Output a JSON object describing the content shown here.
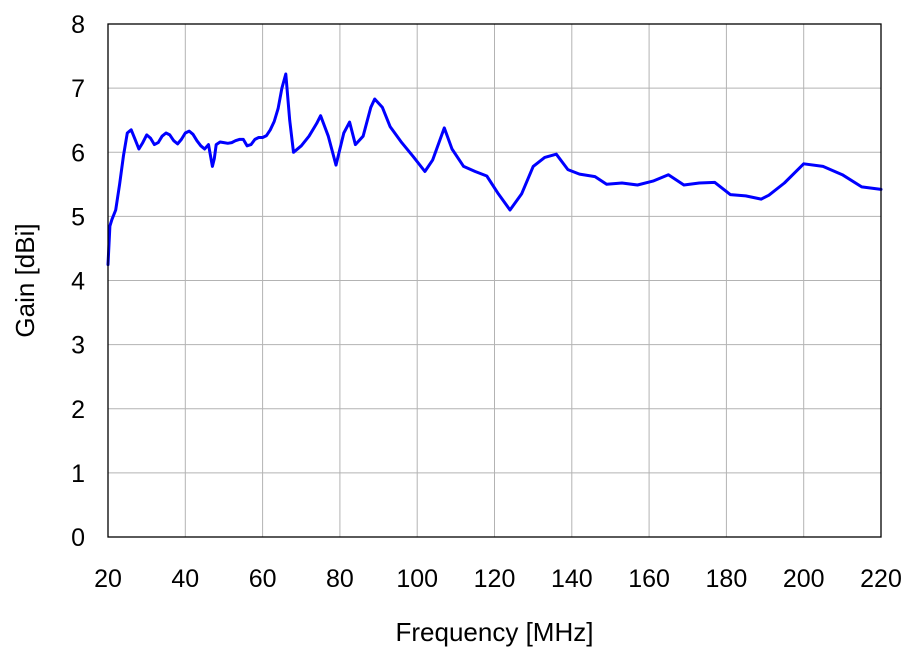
{
  "chart_data": {
    "type": "line",
    "title": "",
    "xlabel": "Frequency [MHz]",
    "ylabel": "Gain [dBi]",
    "xlim": [
      20,
      220
    ],
    "ylim": [
      0,
      8
    ],
    "x_ticks": [
      20,
      40,
      60,
      80,
      100,
      120,
      140,
      160,
      180,
      200,
      220
    ],
    "y_ticks": [
      0,
      1,
      2,
      3,
      4,
      5,
      6,
      7,
      8
    ],
    "x_tick_labels": [
      "20",
      "40",
      "60",
      "80",
      "100",
      "120",
      "140",
      "160",
      "180",
      "200",
      "220"
    ],
    "y_tick_labels": [
      "0",
      "1",
      "2",
      "3",
      "4",
      "5",
      "6",
      "7",
      "8"
    ],
    "grid": true,
    "legend": "none",
    "series": [
      {
        "color": "#0000ff",
        "x": [
          20,
          20.5,
          21,
          22,
          23,
          24,
          25,
          26,
          27,
          28,
          29,
          30,
          31,
          32,
          33,
          34,
          35,
          36,
          37,
          38,
          39,
          40,
          41,
          42,
          43,
          44,
          45,
          46,
          47,
          47.5,
          48,
          49,
          50,
          51,
          52,
          53,
          54,
          55,
          56,
          57,
          58,
          59,
          60,
          61,
          62,
          63,
          64,
          65,
          66,
          67,
          68,
          70,
          72,
          74,
          75,
          77,
          79,
          81,
          82.5,
          84,
          86,
          88,
          89,
          91,
          93,
          96,
          99,
          102,
          104,
          107,
          109,
          112,
          115,
          118,
          121,
          124,
          127,
          130,
          133,
          136,
          139,
          142,
          146,
          149,
          153,
          157,
          161,
          165,
          169,
          173,
          177,
          181,
          185,
          189,
          191,
          195,
          200,
          205,
          210,
          215,
          220
        ],
        "y": [
          4.25,
          4.85,
          4.95,
          5.1,
          5.5,
          5.95,
          6.3,
          6.35,
          6.2,
          6.05,
          6.15,
          6.27,
          6.22,
          6.12,
          6.15,
          6.25,
          6.3,
          6.27,
          6.18,
          6.13,
          6.2,
          6.3,
          6.33,
          6.28,
          6.18,
          6.1,
          6.05,
          6.12,
          5.78,
          5.9,
          6.12,
          6.16,
          6.15,
          6.14,
          6.15,
          6.18,
          6.2,
          6.2,
          6.1,
          6.12,
          6.2,
          6.23,
          6.23,
          6.26,
          6.35,
          6.48,
          6.68,
          7.0,
          7.22,
          6.5,
          6.0,
          6.1,
          6.25,
          6.45,
          6.57,
          6.25,
          5.8,
          6.3,
          6.47,
          6.12,
          6.25,
          6.7,
          6.83,
          6.7,
          6.4,
          6.15,
          5.93,
          5.7,
          5.88,
          6.38,
          6.05,
          5.78,
          5.7,
          5.63,
          5.35,
          5.1,
          5.35,
          5.78,
          5.92,
          5.97,
          5.73,
          5.66,
          5.62,
          5.5,
          5.52,
          5.49,
          5.55,
          5.65,
          5.49,
          5.52,
          5.53,
          5.34,
          5.32,
          5.27,
          5.33,
          5.52,
          5.82,
          5.78,
          5.65,
          5.46,
          5.42
        ]
      }
    ]
  }
}
